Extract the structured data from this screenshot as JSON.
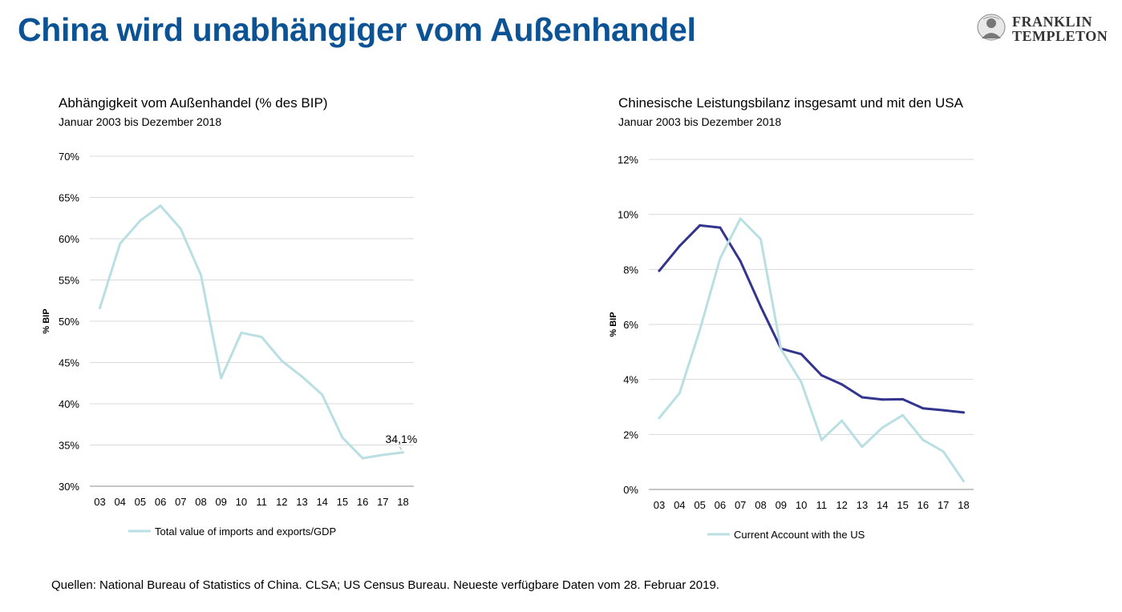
{
  "header": {
    "title": "China wird unabhängiger vom Außenhandel",
    "logo": {
      "line1": "FRANKLIN",
      "line2": "TEMPLETON",
      "icon": "franklin-portrait-icon"
    }
  },
  "footer": {
    "sources": "Quellen: National Bureau of Statistics of China. CLSA; US Census Bureau. Neueste verfügbare Daten vom 28. Februar 2019."
  },
  "chart_data": [
    {
      "type": "line",
      "title": "Abhängigkeit vom Außenhandel (% des BIP)",
      "subtitle": "Januar 2003 bis Dezember 2018",
      "ylabel": "% BIP",
      "ylim": [
        30,
        70
      ],
      "yticks": [
        30,
        35,
        40,
        45,
        50,
        55,
        60,
        65,
        70
      ],
      "ytick_labels": [
        "30%",
        "35%",
        "40%",
        "45%",
        "50%",
        "55%",
        "60%",
        "65%",
        "70%"
      ],
      "categories": [
        "03",
        "04",
        "05",
        "06",
        "07",
        "08",
        "09",
        "10",
        "11",
        "12",
        "13",
        "14",
        "15",
        "16",
        "17",
        "18"
      ],
      "grid": true,
      "legend_position": "bottom",
      "series": [
        {
          "name": "Total value of imports and exports/GDP",
          "color": "#b9dfe3",
          "values": [
            51.6,
            59.4,
            62.2,
            64.0,
            61.2,
            55.6,
            43.1,
            48.6,
            48.1,
            45.2,
            43.3,
            41.1,
            35.9,
            33.4,
            33.8,
            34.1
          ]
        }
      ],
      "annotations": [
        {
          "text": "34,1%",
          "category": "18",
          "value": 34.1
        }
      ]
    },
    {
      "type": "line",
      "title": "Chinesische Leistungsbilanz insgesamt und mit den USA",
      "subtitle": "Januar 2003 bis Dezember 2018",
      "ylabel": "% BIP",
      "ylim": [
        0,
        12
      ],
      "yticks": [
        0,
        2,
        4,
        6,
        8,
        10,
        12
      ],
      "ytick_labels": [
        "0%",
        "2%",
        "4%",
        "6%",
        "8%",
        "10%",
        "12%"
      ],
      "categories": [
        "03",
        "04",
        "05",
        "06",
        "07",
        "08",
        "09",
        "10",
        "11",
        "12",
        "13",
        "14",
        "15",
        "16",
        "17",
        "18"
      ],
      "grid": true,
      "legend_position": "bottom",
      "series": [
        {
          "color": "#33348e",
          "values": [
            7.95,
            8.85,
            9.6,
            9.52,
            8.3,
            6.65,
            5.12,
            4.92,
            4.15,
            3.82,
            3.35,
            3.27,
            3.28,
            2.95,
            2.88,
            2.8
          ]
        },
        {
          "name": "Current Account with the US",
          "color": "#b9dfe3",
          "values": [
            2.6,
            3.5,
            5.8,
            8.4,
            9.85,
            9.1,
            5.1,
            3.9,
            1.8,
            2.5,
            1.55,
            2.25,
            2.7,
            1.8,
            1.38,
            0.3
          ]
        }
      ]
    }
  ]
}
